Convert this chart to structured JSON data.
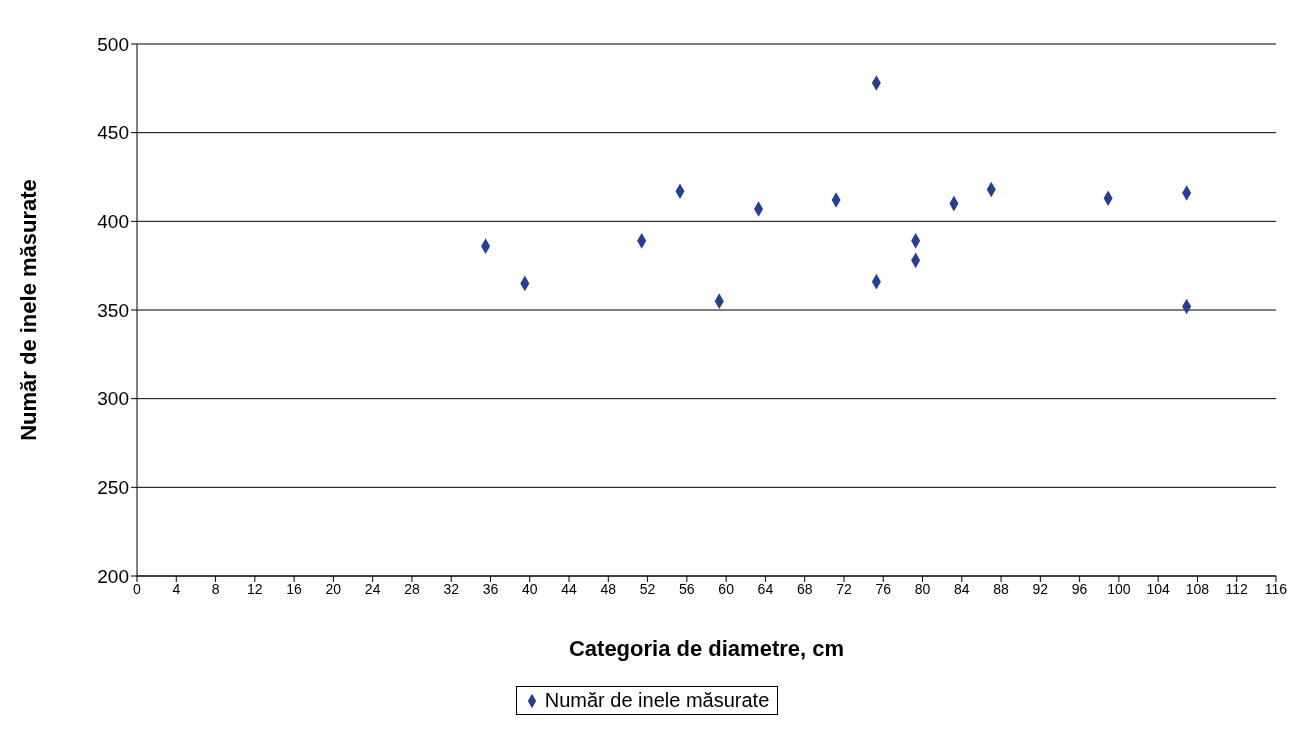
{
  "chart_data": {
    "type": "scatter",
    "xlabel": "Categoria de diametre, cm",
    "ylabel": "Număr de inele măsurate",
    "x": [
      35.5,
      39.5,
      51.4,
      55.3,
      59.3,
      63.3,
      71.2,
      75.3,
      75.3,
      79.3,
      79.3,
      83.2,
      87.0,
      98.9,
      106.9,
      106.9
    ],
    "series": [
      {
        "name": "Număr de inele măsurate",
        "color": "#253f94",
        "values": [
          386,
          365,
          389,
          417,
          355,
          407,
          412,
          478,
          366,
          389,
          378,
          410,
          418,
          413,
          416,
          352
        ]
      }
    ],
    "xlim": [
      0,
      116
    ],
    "xticks": [
      0,
      4,
      8,
      12,
      16,
      20,
      24,
      28,
      32,
      36,
      40,
      44,
      48,
      52,
      56,
      60,
      64,
      68,
      72,
      76,
      80,
      84,
      88,
      92,
      96,
      100,
      104,
      108,
      112,
      116
    ],
    "ylim": [
      200,
      500
    ],
    "yticks": [
      200,
      250,
      300,
      350,
      400,
      450,
      500
    ],
    "grid": "y",
    "legend": "bottom",
    "marker": "diamond"
  }
}
